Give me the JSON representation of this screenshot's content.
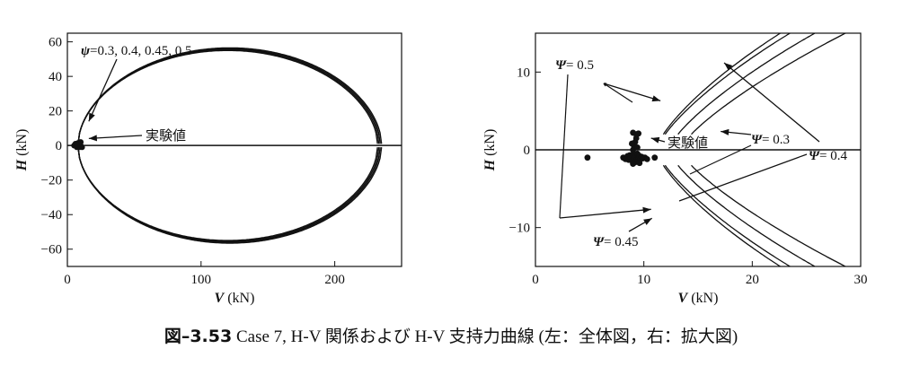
{
  "caption": {
    "figure_number": "図–3.53",
    "text": "Case 7, H-V 関係および H-V 支持力曲線 (左：全体図，右：拡大図)"
  },
  "chart_data": [
    {
      "type": "line",
      "title": "",
      "xlabel": "V (kN)",
      "ylabel": "H (kN)",
      "xlim": [
        0,
        250
      ],
      "ylim": [
        -70,
        65
      ],
      "xticks": [
        0,
        100,
        200
      ],
      "yticks": [
        60,
        40,
        20,
        0,
        -20,
        -40,
        -60
      ],
      "grid": false,
      "annotations": [
        {
          "id": "psi",
          "text": "ψ=0.3, 0.4, 0.45, 0.5",
          "target": [
            12,
            14
          ]
        },
        {
          "id": "exp",
          "text": "実験値",
          "target": [
            12,
            3
          ]
        }
      ],
      "series": [
        {
          "kind": "capacity",
          "psi": 0.3,
          "vmax": 232,
          "hmax": 54.0
        },
        {
          "kind": "capacity",
          "psi": 0.4,
          "vmax": 233,
          "hmax": 54.5
        },
        {
          "kind": "capacity",
          "psi": 0.45,
          "vmax": 234,
          "hmax": 55.0
        },
        {
          "kind": "capacity",
          "psi": 0.5,
          "vmax": 235,
          "hmax": 55.5
        },
        {
          "kind": "experiment",
          "points": [
            [
              5,
              0
            ],
            [
              6,
              1
            ],
            [
              7,
              -1
            ],
            [
              8,
              0
            ],
            [
              8,
              1.5
            ],
            [
              9,
              -1
            ],
            [
              10,
              0
            ],
            [
              10,
              2
            ],
            [
              11,
              -1
            ],
            [
              9,
              1
            ],
            [
              7,
              0.5
            ]
          ]
        }
      ]
    },
    {
      "type": "line",
      "title": "",
      "xlabel": "V (kN)",
      "ylabel": "H (kN)",
      "xlim": [
        0,
        30
      ],
      "ylim": [
        -15,
        15
      ],
      "xticks": [
        0,
        10,
        20,
        30
      ],
      "yticks": [
        10,
        0,
        -10
      ],
      "grid": false,
      "annotations": [
        {
          "id": "p05",
          "text": "Ψ= 0.5",
          "target": [
            11.2,
            6.3
          ]
        },
        {
          "id": "exp",
          "text": "実験値",
          "target": [
            10.5,
            1.5
          ]
        },
        {
          "id": "p03",
          "text": "Ψ= 0.3",
          "target": [
            14.6,
            5.6
          ]
        },
        {
          "id": "p04",
          "text": "Ψ= 0.4",
          "target": [
            13.5,
            7.5
          ]
        },
        {
          "id": "p045",
          "text": "Ψ= 0.45",
          "target": [
            10.0,
            -6.5
          ]
        }
      ],
      "series": [
        {
          "kind": "capacity",
          "psi": 0.5,
          "v0": 11.2,
          "slope": 0.52
        },
        {
          "kind": "capacity",
          "psi": 0.45,
          "v0": 11.3,
          "slope": 0.58
        },
        {
          "kind": "capacity",
          "psi": 0.4,
          "v0": 12.4,
          "slope": 0.67
        },
        {
          "kind": "capacity",
          "psi": 0.3,
          "v0": 13.5,
          "slope": 0.8
        },
        {
          "kind": "experiment",
          "points": [
            [
              4.8,
              -1
            ],
            [
              8.1,
              -1
            ],
            [
              8.3,
              -1.2
            ],
            [
              8.5,
              -0.8
            ],
            [
              8.6,
              -1.3
            ],
            [
              8.7,
              -0.7
            ],
            [
              8.8,
              -1
            ],
            [
              8.9,
              -1.4
            ],
            [
              9.0,
              -0.6
            ],
            [
              9.1,
              -1.1
            ],
            [
              9.2,
              -0.9
            ],
            [
              9.3,
              -1.3
            ],
            [
              9.4,
              -0.5
            ],
            [
              9.5,
              -1
            ],
            [
              9.6,
              -0.8
            ],
            [
              9.7,
              -1.2
            ],
            [
              9.8,
              -0.9
            ],
            [
              9.9,
              -1.1
            ],
            [
              10.1,
              -1
            ],
            [
              10.3,
              -1.2
            ],
            [
              9.0,
              0
            ],
            [
              9.1,
              0.5
            ],
            [
              9.2,
              1
            ],
            [
              9.3,
              1.5
            ],
            [
              9.3,
              2
            ],
            [
              9.0,
              2.2
            ],
            [
              9.5,
              2.1
            ],
            [
              9.2,
              -1.6
            ],
            [
              9.0,
              -1.8
            ],
            [
              9.6,
              -1.7
            ],
            [
              11.0,
              -1
            ],
            [
              9.4,
              0.3
            ],
            [
              8.9,
              0.8
            ]
          ]
        }
      ]
    }
  ]
}
